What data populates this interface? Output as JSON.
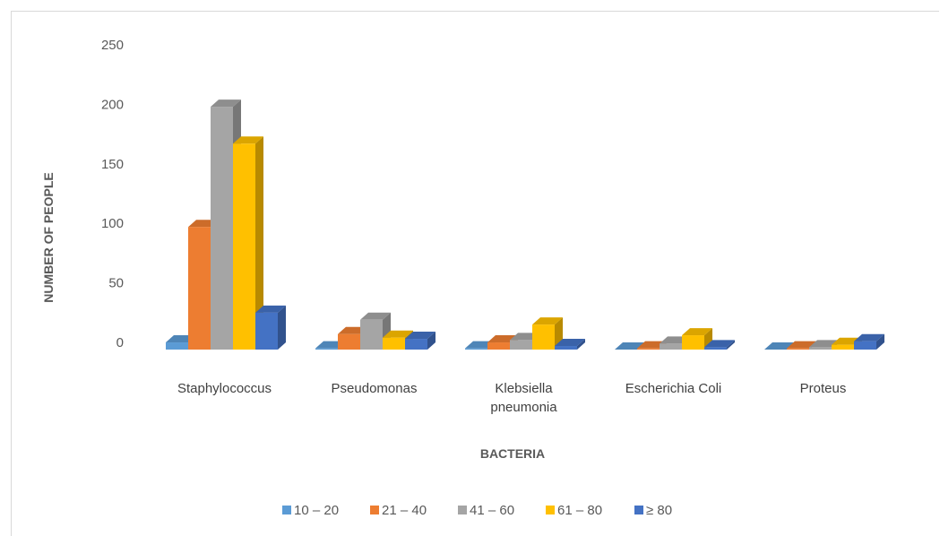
{
  "chart_data": {
    "type": "bar",
    "title": "",
    "xlabel": "BACTERIA",
    "ylabel": "NUMBER OF PEOPLE",
    "ylim": [
      0,
      250
    ],
    "yticks": [
      0,
      50,
      100,
      150,
      200,
      250
    ],
    "grid": false,
    "legend_position": "bottom",
    "categories": [
      [
        "Staphylococcus"
      ],
      [
        "Pseudomonas"
      ],
      [
        "Klebsiella",
        "pneumonia"
      ],
      [
        "Escherichia Coli"
      ],
      [
        "Proteus"
      ]
    ],
    "series": [
      {
        "name": "10 – 20",
        "color": "#5b9bd5",
        "values": [
          6,
          1,
          1,
          0,
          0
        ]
      },
      {
        "name": "21 – 40",
        "color": "#ed7d31",
        "values": [
          103,
          13,
          6,
          1,
          1
        ]
      },
      {
        "name": "41 – 60",
        "color": "#a5a5a5",
        "values": [
          204,
          25,
          8,
          5,
          2
        ]
      },
      {
        "name": "61 – 80",
        "color": "#ffc000",
        "values": [
          173,
          10,
          21,
          12,
          4
        ]
      },
      {
        "name": "≥ 80",
        "color": "#4472c4",
        "values": [
          31,
          9,
          3,
          2,
          7
        ]
      }
    ]
  }
}
